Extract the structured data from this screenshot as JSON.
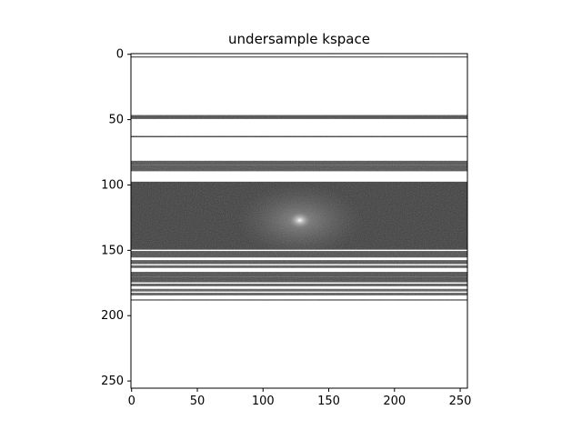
{
  "chart_data": {
    "type": "heatmap",
    "title": "undersample kspace",
    "xlabel": "",
    "ylabel": "",
    "xlim": [
      0,
      255
    ],
    "ylim": [
      255,
      0
    ],
    "x_ticks": [
      "0",
      "50",
      "100",
      "150",
      "200",
      "250"
    ],
    "y_ticks": [
      "0",
      "50",
      "100",
      "150",
      "200",
      "250"
    ],
    "image_size": [
      256,
      256
    ],
    "colormap": "gray",
    "background_color": "#ffffff",
    "sampled_rows": [
      {
        "rows": [
          2,
          2
        ],
        "shade": "#555555"
      },
      {
        "rows": [
          47,
          49
        ],
        "shade": "#4a4a4a"
      },
      {
        "rows": [
          63,
          63
        ],
        "shade": "#3a3a3a"
      },
      {
        "rows": [
          82,
          84
        ],
        "shade": "#4f4f4f"
      },
      {
        "rows": [
          85,
          89
        ],
        "shade": "#505050"
      },
      {
        "rows": [
          98,
          149
        ],
        "shade": "#3c3c3c"
      },
      {
        "rows": [
          151,
          155
        ],
        "shade": "#4d4d4d"
      },
      {
        "rows": [
          158,
          160
        ],
        "shade": "#505050"
      },
      {
        "rows": [
          162,
          163
        ],
        "shade": "#565656"
      },
      {
        "rows": [
          167,
          170
        ],
        "shade": "#4b4b4b"
      },
      {
        "rows": [
          171,
          174
        ],
        "shade": "#4b4b4b"
      },
      {
        "rows": [
          176,
          177
        ],
        "shade": "#575757"
      },
      {
        "rows": [
          180,
          181
        ],
        "shade": "#5a5a5a"
      },
      {
        "rows": [
          183,
          184
        ],
        "shade": "#595959"
      },
      {
        "rows": [
          188,
          188
        ],
        "shade": "#5a5a5a"
      }
    ],
    "center_peak": [
      128,
      127
    ]
  }
}
